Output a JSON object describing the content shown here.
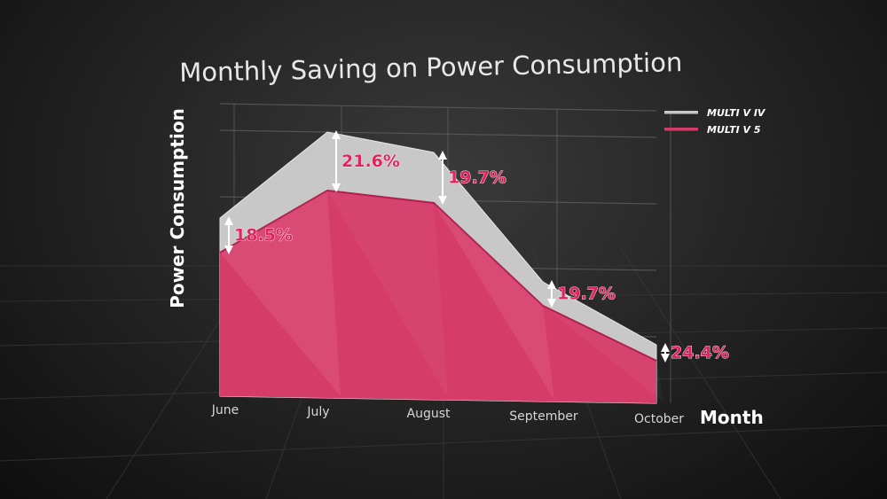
{
  "chart_data": {
    "type": "area",
    "title": "Monthly Saving on Power Consumption",
    "ylabel": "Power Consumption",
    "xlabel": "Month",
    "categories": [
      "June",
      "July",
      "August",
      "September",
      "October"
    ],
    "series": [
      {
        "name": "MULTI V IV",
        "values": [
          67,
          100,
          93,
          45,
          22
        ]
      },
      {
        "name": "MULTI V 5",
        "values": [
          54,
          78,
          74,
          36,
          16
        ]
      }
    ],
    "saving_labels": [
      "18.5%",
      "21.6%",
      "19.7%",
      "19.7%",
      "24.4%"
    ],
    "ylim": [
      0,
      100
    ],
    "grid": true,
    "legend_position": "top-right",
    "colors": {
      "multi_v_iv": "#c8c8c8",
      "multi_v_5": "#d63c6a",
      "label": "#e0245e",
      "grid": "#5a5a5a"
    }
  }
}
